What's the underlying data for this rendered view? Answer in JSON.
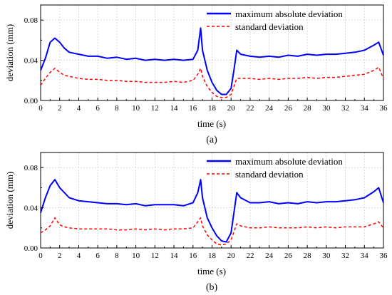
{
  "chart_data": [
    {
      "type": "line",
      "panel_label": "(a)",
      "xlabel": "time (s)",
      "ylabel": "deviation (mm)",
      "xlim": [
        0,
        36
      ],
      "ylim": [
        0,
        0.095
      ],
      "x_ticks": [
        0,
        2,
        4,
        6,
        8,
        10,
        12,
        14,
        16,
        18,
        20,
        22,
        24,
        26,
        28,
        30,
        32,
        34,
        36
      ],
      "x_tick_labels": [
        "0",
        "2",
        "4",
        "6",
        "8",
        "10",
        "12",
        "14",
        "16",
        "18",
        "20",
        "22",
        "24",
        "26",
        "28",
        "30",
        "32",
        "34",
        "36"
      ],
      "y_ticks": [
        0,
        0.04,
        0.08
      ],
      "y_tick_labels": [
        "0.00",
        "0.04",
        "0.08"
      ],
      "grid": true,
      "legend_position": "top-right",
      "x": [
        0,
        0.5,
        1,
        1.5,
        2,
        2.5,
        3,
        4,
        5,
        6,
        7,
        8,
        9,
        10,
        11,
        12,
        13,
        14,
        15,
        16,
        16.5,
        16.8,
        17,
        17.5,
        18,
        18.5,
        19,
        19.5,
        20,
        20.3,
        20.6,
        21,
        22,
        23,
        24,
        25,
        26,
        27,
        28,
        29,
        30,
        31,
        32,
        33,
        34,
        35,
        35.5,
        36
      ],
      "series": [
        {
          "name": "maximum absolute deviation",
          "color": "#0000ff",
          "style": "solid",
          "values": [
            0.03,
            0.042,
            0.058,
            0.062,
            0.058,
            0.052,
            0.048,
            0.046,
            0.044,
            0.044,
            0.042,
            0.043,
            0.041,
            0.042,
            0.04,
            0.041,
            0.04,
            0.041,
            0.04,
            0.041,
            0.05,
            0.072,
            0.05,
            0.03,
            0.018,
            0.01,
            0.006,
            0.006,
            0.012,
            0.03,
            0.05,
            0.046,
            0.044,
            0.043,
            0.044,
            0.043,
            0.045,
            0.044,
            0.046,
            0.045,
            0.046,
            0.046,
            0.047,
            0.048,
            0.05,
            0.055,
            0.058,
            0.045
          ]
        },
        {
          "name": "standard deviation",
          "color": "#ff0000",
          "style": "dashed",
          "values": [
            0.015,
            0.022,
            0.028,
            0.032,
            0.028,
            0.025,
            0.024,
            0.022,
            0.021,
            0.021,
            0.02,
            0.02,
            0.019,
            0.019,
            0.018,
            0.018,
            0.018,
            0.019,
            0.018,
            0.02,
            0.026,
            0.032,
            0.024,
            0.014,
            0.008,
            0.004,
            0.003,
            0.003,
            0.006,
            0.014,
            0.022,
            0.022,
            0.022,
            0.021,
            0.022,
            0.021,
            0.022,
            0.022,
            0.023,
            0.022,
            0.023,
            0.023,
            0.024,
            0.025,
            0.026,
            0.03,
            0.033,
            0.022
          ]
        }
      ]
    },
    {
      "type": "line",
      "panel_label": "(b)",
      "xlabel": "time (s)",
      "ylabel": "deviation (mm)",
      "xlim": [
        0,
        36
      ],
      "ylim": [
        0,
        0.095
      ],
      "x_ticks": [
        0,
        2,
        4,
        6,
        8,
        10,
        12,
        14,
        16,
        18,
        20,
        22,
        24,
        26,
        28,
        30,
        32,
        34,
        36
      ],
      "x_tick_labels": [
        "0",
        "2",
        "4",
        "6",
        "8",
        "10",
        "12",
        "14",
        "16",
        "18",
        "20",
        "22",
        "24",
        "26",
        "28",
        "30",
        "32",
        "34",
        "36"
      ],
      "y_ticks": [
        0,
        0.04,
        0.08
      ],
      "y_tick_labels": [
        "0.00",
        "0.04",
        "0.08"
      ],
      "grid": true,
      "legend_position": "top-right",
      "x": [
        0,
        0.5,
        1,
        1.5,
        2,
        2.5,
        3,
        4,
        5,
        6,
        7,
        8,
        9,
        10,
        11,
        12,
        13,
        14,
        15,
        16,
        16.5,
        16.8,
        17,
        17.5,
        18,
        18.5,
        19,
        19.5,
        20,
        20.3,
        20.6,
        21,
        22,
        23,
        24,
        25,
        26,
        27,
        28,
        29,
        30,
        31,
        32,
        33,
        34,
        35,
        35.5,
        36
      ],
      "series": [
        {
          "name": "maximum absolute deviation",
          "color": "#0000ff",
          "style": "solid",
          "values": [
            0.035,
            0.05,
            0.062,
            0.068,
            0.06,
            0.055,
            0.05,
            0.047,
            0.046,
            0.045,
            0.044,
            0.044,
            0.043,
            0.044,
            0.042,
            0.043,
            0.043,
            0.043,
            0.042,
            0.045,
            0.055,
            0.068,
            0.05,
            0.03,
            0.02,
            0.012,
            0.007,
            0.006,
            0.015,
            0.035,
            0.055,
            0.05,
            0.045,
            0.045,
            0.046,
            0.044,
            0.045,
            0.044,
            0.046,
            0.045,
            0.046,
            0.046,
            0.047,
            0.048,
            0.05,
            0.056,
            0.06,
            0.045
          ]
        },
        {
          "name": "standard deviation",
          "color": "#ff0000",
          "style": "dashed",
          "values": [
            0.015,
            0.018,
            0.022,
            0.03,
            0.023,
            0.021,
            0.02,
            0.019,
            0.019,
            0.019,
            0.019,
            0.018,
            0.018,
            0.019,
            0.018,
            0.019,
            0.018,
            0.019,
            0.019,
            0.02,
            0.026,
            0.03,
            0.022,
            0.013,
            0.008,
            0.004,
            0.003,
            0.004,
            0.008,
            0.016,
            0.024,
            0.022,
            0.02,
            0.02,
            0.021,
            0.02,
            0.02,
            0.02,
            0.021,
            0.02,
            0.021,
            0.02,
            0.021,
            0.021,
            0.021,
            0.024,
            0.026,
            0.02
          ]
        }
      ]
    }
  ]
}
